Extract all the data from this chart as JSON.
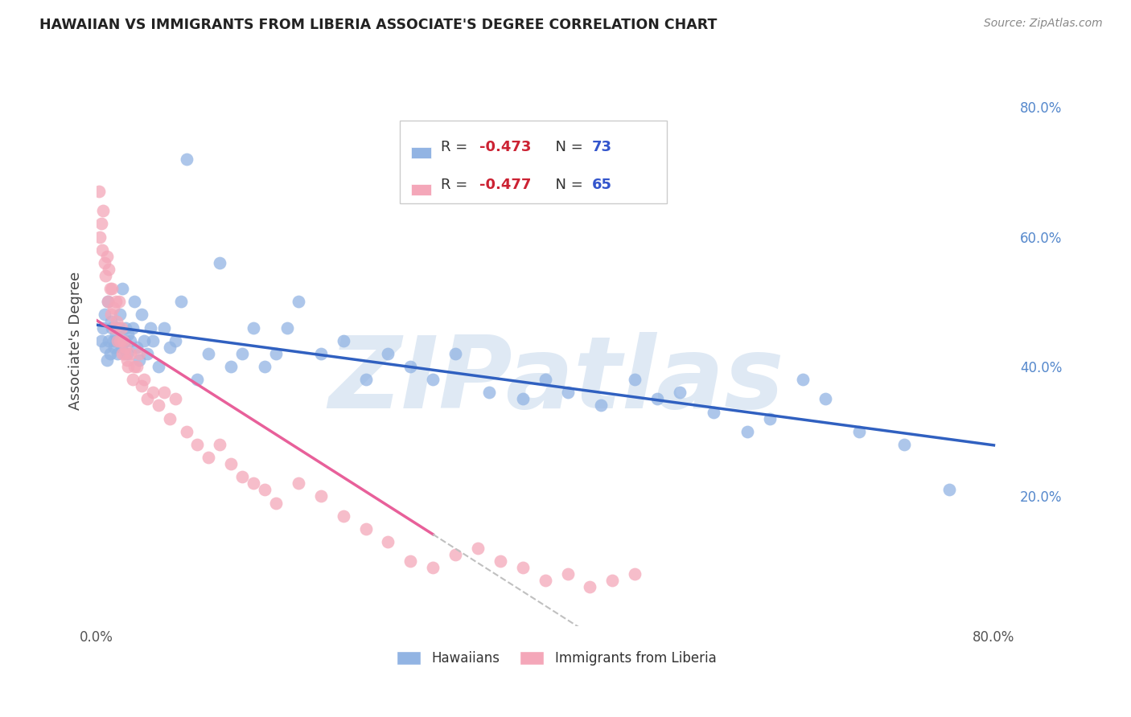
{
  "title": "HAWAIIAN VS IMMIGRANTS FROM LIBERIA ASSOCIATE'S DEGREE CORRELATION CHART",
  "source": "Source: ZipAtlas.com",
  "ylabel": "Associate's Degree",
  "right_yticklabels": [
    "20.0%",
    "40.0%",
    "60.0%",
    "80.0%"
  ],
  "right_yticks": [
    0.2,
    0.4,
    0.6,
    0.8
  ],
  "bottom_xtick_vals": [
    0.0,
    0.1,
    0.2,
    0.3,
    0.4,
    0.5,
    0.6,
    0.7,
    0.8
  ],
  "bottom_xticklabels": [
    "0.0%",
    "",
    "",
    "",
    "",
    "",
    "",
    "",
    "80.0%"
  ],
  "xlim": [
    0.0,
    0.82
  ],
  "ylim": [
    0.0,
    0.88
  ],
  "hawaiians_color": "#92b4e3",
  "liberia_color": "#f4a7b9",
  "hawaiians_line_color": "#3060c0",
  "liberia_line_color": "#e8609a",
  "liberia_line_dashed_color": "#c0c0c0",
  "legend_label1": "Hawaiians",
  "legend_label2": "Immigrants from Liberia",
  "watermark": "ZIPatlas",
  "watermark_color": "#b8cfe8",
  "background_color": "#ffffff",
  "grid_color": "#dddddd",
  "hawaiians_x": [
    0.004,
    0.006,
    0.007,
    0.008,
    0.009,
    0.01,
    0.011,
    0.012,
    0.013,
    0.014,
    0.015,
    0.016,
    0.017,
    0.018,
    0.018,
    0.019,
    0.02,
    0.021,
    0.022,
    0.023,
    0.025,
    0.026,
    0.027,
    0.028,
    0.03,
    0.032,
    0.034,
    0.036,
    0.038,
    0.04,
    0.042,
    0.045,
    0.048,
    0.05,
    0.055,
    0.06,
    0.065,
    0.07,
    0.075,
    0.08,
    0.09,
    0.1,
    0.11,
    0.12,
    0.13,
    0.14,
    0.15,
    0.16,
    0.17,
    0.18,
    0.2,
    0.22,
    0.24,
    0.26,
    0.28,
    0.3,
    0.32,
    0.35,
    0.38,
    0.4,
    0.42,
    0.45,
    0.48,
    0.5,
    0.52,
    0.55,
    0.58,
    0.6,
    0.63,
    0.65,
    0.68,
    0.72,
    0.76
  ],
  "hawaiians_y": [
    0.44,
    0.46,
    0.48,
    0.43,
    0.41,
    0.5,
    0.44,
    0.42,
    0.47,
    0.46,
    0.44,
    0.43,
    0.45,
    0.46,
    0.44,
    0.42,
    0.46,
    0.48,
    0.43,
    0.52,
    0.44,
    0.46,
    0.42,
    0.45,
    0.44,
    0.46,
    0.5,
    0.43,
    0.41,
    0.48,
    0.44,
    0.42,
    0.46,
    0.44,
    0.4,
    0.46,
    0.43,
    0.44,
    0.5,
    0.72,
    0.38,
    0.42,
    0.56,
    0.4,
    0.42,
    0.46,
    0.4,
    0.42,
    0.46,
    0.5,
    0.42,
    0.44,
    0.38,
    0.42,
    0.4,
    0.38,
    0.42,
    0.36,
    0.35,
    0.38,
    0.36,
    0.34,
    0.38,
    0.35,
    0.36,
    0.33,
    0.3,
    0.32,
    0.38,
    0.35,
    0.3,
    0.28,
    0.21
  ],
  "liberia_x": [
    0.002,
    0.003,
    0.004,
    0.005,
    0.006,
    0.007,
    0.008,
    0.009,
    0.01,
    0.011,
    0.012,
    0.013,
    0.014,
    0.015,
    0.016,
    0.017,
    0.018,
    0.019,
    0.02,
    0.021,
    0.022,
    0.023,
    0.024,
    0.025,
    0.026,
    0.027,
    0.028,
    0.03,
    0.032,
    0.034,
    0.036,
    0.038,
    0.04,
    0.042,
    0.045,
    0.05,
    0.055,
    0.06,
    0.065,
    0.07,
    0.08,
    0.09,
    0.1,
    0.11,
    0.12,
    0.13,
    0.14,
    0.15,
    0.16,
    0.18,
    0.2,
    0.22,
    0.24,
    0.26,
    0.28,
    0.3,
    0.32,
    0.34,
    0.36,
    0.38,
    0.4,
    0.42,
    0.44,
    0.46,
    0.48
  ],
  "liberia_y": [
    0.67,
    0.6,
    0.62,
    0.58,
    0.64,
    0.56,
    0.54,
    0.57,
    0.5,
    0.55,
    0.52,
    0.48,
    0.52,
    0.49,
    0.46,
    0.5,
    0.47,
    0.44,
    0.5,
    0.44,
    0.46,
    0.42,
    0.44,
    0.42,
    0.43,
    0.41,
    0.4,
    0.42,
    0.38,
    0.4,
    0.4,
    0.42,
    0.37,
    0.38,
    0.35,
    0.36,
    0.34,
    0.36,
    0.32,
    0.35,
    0.3,
    0.28,
    0.26,
    0.28,
    0.25,
    0.23,
    0.22,
    0.21,
    0.19,
    0.22,
    0.2,
    0.17,
    0.15,
    0.13,
    0.1,
    0.09,
    0.11,
    0.12,
    0.1,
    0.09,
    0.07,
    0.08,
    0.06,
    0.07,
    0.08
  ],
  "liberia_line_x_end": 0.3
}
